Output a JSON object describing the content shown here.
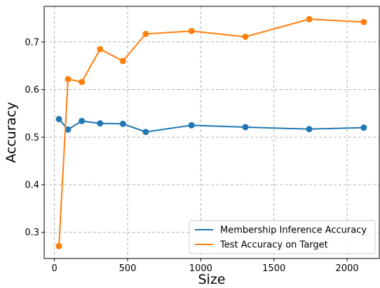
{
  "chart_data": {
    "type": "line",
    "title": "",
    "xlabel": "Size",
    "ylabel": "Accuracy",
    "xlim": [
      -70,
      2220
    ],
    "ylim": [
      0.245,
      0.775
    ],
    "xticks": [
      0,
      500,
      1000,
      1500,
      2000
    ],
    "yticks": [
      0.3,
      0.4,
      0.5,
      0.6,
      0.7
    ],
    "xtick_labels": [
      "0",
      "500",
      "1000",
      "1500",
      "2000"
    ],
    "ytick_labels": [
      "0.3",
      "0.4",
      "0.5",
      "0.6",
      "0.7"
    ],
    "grid": true,
    "legend_position": "lower-right",
    "x": [
      31,
      93,
      187,
      312,
      468,
      624,
      937,
      1305,
      1741,
      2114
    ],
    "series": [
      {
        "name": "Membership Inference Accuracy",
        "color": "#1f77b4",
        "values": [
          0.538,
          0.516,
          0.534,
          0.529,
          0.528,
          0.511,
          0.525,
          0.521,
          0.517,
          0.52
        ]
      },
      {
        "name": "Test Accuracy on Target",
        "color": "#ff7f0e",
        "values": [
          0.271,
          0.622,
          0.616,
          0.685,
          0.66,
          0.717,
          0.723,
          0.711,
          0.748,
          0.742
        ]
      }
    ]
  }
}
